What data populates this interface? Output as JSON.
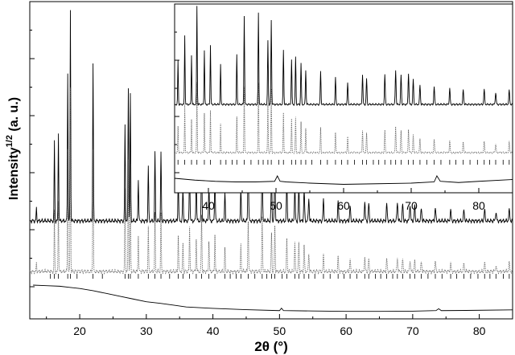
{
  "chart_data": [
    {
      "type": "line",
      "panel": "main",
      "xlabel": "2θ (°)",
      "ylabel": "Intensity",
      "ylabel_superscript": "1/2",
      "ylabel_suffix": " (a. u.)",
      "xlim": [
        12.5,
        85
      ],
      "xticks": [
        20,
        30,
        40,
        50,
        60,
        70,
        80
      ],
      "grid": false,
      "legend": "none",
      "series": [
        {
          "style": "solid",
          "x": [
            13.5,
            16.2,
            16.8,
            18.2,
            18.6,
            22.0,
            26.8,
            27.3,
            27.6,
            28.8,
            30.3,
            31.3,
            32.2,
            34.8,
            35.5,
            36.5,
            37.5,
            38.3,
            39.4,
            40.3,
            41.8,
            44.2,
            45.3,
            47.4,
            48.8,
            49.3,
            51.1,
            52.3,
            52.9,
            53.7,
            54.4,
            56.6,
            58.8,
            60.6,
            62.8,
            63.4,
            66.1,
            67.7,
            68.5,
            69.6,
            70.3,
            71.3,
            73.4,
            75.7,
            77.7,
            80.8,
            82.5,
            84.5
          ],
          "y": [
            0.06,
            0.38,
            0.42,
            0.7,
            1.0,
            0.75,
            0.45,
            0.63,
            0.6,
            0.2,
            0.26,
            0.32,
            0.32,
            0.2,
            0.16,
            0.26,
            0.2,
            0.33,
            0.18,
            0.22,
            0.13,
            0.15,
            0.3,
            0.3,
            0.22,
            0.26,
            0.19,
            0.16,
            0.16,
            0.15,
            0.11,
            0.1,
            0.09,
            0.07,
            0.09,
            0.08,
            0.08,
            0.09,
            0.08,
            0.08,
            0.07,
            0.06,
            0.06,
            0.05,
            0.05,
            0.05,
            0.04,
            0.05
          ]
        },
        {
          "style": "dotted",
          "x": [
            13.5,
            16.2,
            16.8,
            18.2,
            18.6,
            22.0,
            26.8,
            27.3,
            27.6,
            28.8,
            30.3,
            31.3,
            32.2,
            34.8,
            35.5,
            36.5,
            37.5,
            38.3,
            39.4,
            40.3,
            41.8,
            44.2,
            45.3,
            47.4,
            48.8,
            49.3,
            51.1,
            52.3,
            52.9,
            53.7,
            54.4,
            56.6,
            58.8,
            60.6,
            62.8,
            63.4,
            66.1,
            67.7,
            68.5,
            69.6,
            70.3,
            71.3,
            73.4,
            75.7,
            77.7,
            80.8,
            82.5,
            84.5
          ],
          "y": [
            0.04,
            0.3,
            0.35,
            0.6,
            0.9,
            0.6,
            0.4,
            0.55,
            0.52,
            0.18,
            0.22,
            0.28,
            0.28,
            0.18,
            0.14,
            0.22,
            0.16,
            0.28,
            0.15,
            0.18,
            0.11,
            0.13,
            0.25,
            0.26,
            0.19,
            0.22,
            0.16,
            0.14,
            0.14,
            0.13,
            0.09,
            0.08,
            0.07,
            0.06,
            0.07,
            0.06,
            0.06,
            0.07,
            0.06,
            0.06,
            0.05,
            0.05,
            0.05,
            0.04,
            0.04,
            0.04,
            0.03,
            0.04
          ]
        },
        {
          "style": "ticks",
          "x": [
            15.6,
            16.2,
            16.8,
            18.2,
            18.6,
            19.6,
            22.0,
            23.4,
            26.8,
            27.3,
            27.6,
            28.8,
            30.3,
            31.3,
            32.2,
            33.5,
            34.8,
            35.5,
            36.5,
            37.5,
            38.3,
            39.4,
            40.3,
            41.8,
            42.6,
            43.5,
            44.2,
            45.3,
            46.3,
            47.4,
            48.1,
            48.8,
            49.3,
            50.4,
            51.1,
            52.3,
            52.9,
            53.7,
            54.4,
            55.3,
            56.6,
            57.6,
            58.8,
            59.7,
            60.6,
            61.6,
            62.8,
            63.4,
            64.4,
            65.2,
            66.1,
            67.0,
            67.7,
            68.5,
            69.6,
            70.3,
            71.3,
            72.3,
            73.4,
            74.4,
            75.7,
            76.6,
            77.7,
            78.7,
            79.8,
            80.8,
            81.6,
            82.5,
            83.6,
            84.5
          ]
        },
        {
          "style": "solid",
          "x": [
            13.0,
            15.0,
            17.0,
            18.5,
            20.0,
            22.0,
            24.0,
            26.0,
            28.0,
            30.0,
            32.0,
            34.0,
            36.0,
            40.0,
            45.0,
            50.0,
            50.3,
            50.6,
            55.0,
            60.0,
            65.0,
            70.0,
            73.5,
            73.9,
            74.3,
            78.0,
            85.0
          ],
          "y": [
            0.0,
            -0.003,
            -0.006,
            -0.012,
            -0.018,
            -0.03,
            -0.045,
            -0.06,
            -0.075,
            -0.09,
            -0.098,
            -0.108,
            -0.118,
            -0.126,
            -0.133,
            -0.138,
            -0.125,
            -0.138,
            -0.14,
            -0.142,
            -0.142,
            -0.141,
            -0.138,
            -0.128,
            -0.138,
            -0.137,
            -0.134
          ]
        }
      ]
    },
    {
      "type": "line",
      "panel": "inset",
      "xlim": [
        35,
        85
      ],
      "xticks": [
        40,
        50,
        60,
        70,
        80
      ],
      "grid": false,
      "legend": "none",
      "series": [
        {
          "style": "solid",
          "x": [
            35.5,
            36.5,
            37.5,
            38.3,
            39.4,
            40.3,
            41.8,
            44.2,
            45.3,
            47.4,
            48.8,
            49.3,
            51.1,
            52.3,
            52.9,
            53.7,
            54.4,
            56.6,
            58.8,
            60.6,
            62.8,
            63.4,
            66.1,
            67.7,
            68.5,
            69.6,
            70.3,
            71.3,
            73.4,
            75.7,
            77.7,
            80.8,
            82.5,
            84.5
          ],
          "y": [
            0.45,
            0.7,
            0.5,
            1.0,
            0.55,
            0.6,
            0.4,
            0.5,
            0.9,
            0.92,
            0.65,
            0.85,
            0.55,
            0.45,
            0.48,
            0.42,
            0.35,
            0.33,
            0.27,
            0.22,
            0.3,
            0.26,
            0.3,
            0.35,
            0.3,
            0.32,
            0.25,
            0.2,
            0.18,
            0.16,
            0.15,
            0.15,
            0.12,
            0.14
          ]
        },
        {
          "style": "dotted",
          "x": [
            35.5,
            36.5,
            37.5,
            38.3,
            39.4,
            40.3,
            41.8,
            44.2,
            45.3,
            47.4,
            48.8,
            49.3,
            51.1,
            52.3,
            52.9,
            53.7,
            54.4,
            56.6,
            58.8,
            60.6,
            62.8,
            63.4,
            66.1,
            67.7,
            68.5,
            69.6,
            70.3,
            71.3,
            73.4,
            75.7,
            77.7,
            80.8,
            82.5,
            84.5
          ],
          "y": [
            0.3,
            0.55,
            0.38,
            0.8,
            0.45,
            0.48,
            0.32,
            0.4,
            0.75,
            0.78,
            0.55,
            0.72,
            0.45,
            0.38,
            0.4,
            0.35,
            0.28,
            0.28,
            0.22,
            0.18,
            0.25,
            0.22,
            0.25,
            0.3,
            0.25,
            0.27,
            0.2,
            0.16,
            0.15,
            0.13,
            0.12,
            0.12,
            0.1,
            0.12
          ]
        },
        {
          "style": "ticks",
          "x": [
            35.5,
            36.5,
            37.5,
            38.3,
            39.4,
            40.3,
            41.8,
            42.6,
            43.5,
            44.2,
            45.3,
            46.3,
            47.4,
            48.1,
            48.8,
            49.3,
            50.4,
            51.1,
            52.3,
            52.9,
            53.7,
            54.4,
            55.3,
            56.6,
            57.6,
            58.8,
            59.7,
            60.6,
            61.6,
            62.8,
            63.4,
            64.4,
            65.2,
            66.1,
            67.0,
            67.7,
            68.5,
            69.6,
            70.3,
            71.3,
            72.3,
            73.4,
            74.4,
            75.7,
            76.6,
            77.7,
            78.7,
            79.8,
            80.8,
            81.6,
            82.5,
            83.6,
            84.5
          ]
        },
        {
          "style": "solid",
          "x": [
            35.0,
            38.0,
            41.0,
            44.0,
            47.0,
            49.8,
            50.2,
            50.6,
            51.5,
            55.0,
            60.0,
            65.0,
            70.0,
            73.4,
            73.8,
            74.3,
            77.0,
            80.0,
            85.0
          ],
          "y": [
            0.02,
            0.005,
            -0.005,
            -0.01,
            -0.01,
            -0.005,
            0.04,
            -0.005,
            -0.01,
            -0.02,
            -0.03,
            -0.025,
            -0.02,
            -0.01,
            0.04,
            -0.005,
            -0.015,
            -0.005,
            0.01
          ]
        }
      ]
    }
  ]
}
